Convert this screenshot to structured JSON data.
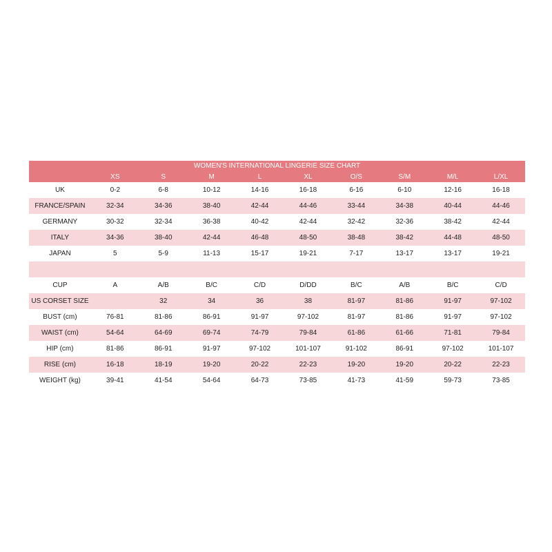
{
  "title": "WOMEN'S INTERNATIONAL LINGERIE SIZE CHART",
  "colors": {
    "header": "#E57B80",
    "stripe": "#F8D7DA"
  },
  "sizes": [
    "XS",
    "S",
    "M",
    "L",
    "XL",
    "O/S",
    "S/M",
    "M/L",
    "L/XL"
  ],
  "rows": [
    {
      "label": "UK",
      "values": [
        "0-2",
        "6-8",
        "10-12",
        "14-16",
        "16-18",
        "6-16",
        "6-10",
        "12-16",
        "16-18"
      ]
    },
    {
      "label": "FRANCE/SPAIN",
      "values": [
        "32-34",
        "34-36",
        "38-40",
        "42-44",
        "44-46",
        "33-44",
        "34-38",
        "40-44",
        "44-46"
      ]
    },
    {
      "label": "GERMANY",
      "values": [
        "30-32",
        "32-34",
        "36-38",
        "40-42",
        "42-44",
        "32-42",
        "32-36",
        "38-42",
        "42-44"
      ]
    },
    {
      "label": "ITALY",
      "values": [
        "34-36",
        "38-40",
        "42-44",
        "46-48",
        "48-50",
        "38-48",
        "38-42",
        "44-48",
        "48-50"
      ]
    },
    {
      "label": "JAPAN",
      "values": [
        "5",
        "5-9",
        "11-13",
        "15-17",
        "19-21",
        "7-17",
        "13-17",
        "13-17",
        "19-21"
      ]
    },
    {
      "label": "",
      "values": [
        "",
        "",
        "",
        "",
        "",
        "",
        "",
        "",
        ""
      ]
    },
    {
      "label": "CUP",
      "values": [
        "A",
        "A/B",
        "B/C",
        "C/D",
        "D/DD",
        "B/C",
        "A/B",
        "B/C",
        "C/D"
      ]
    },
    {
      "label": "US CORSET SIZE",
      "values": [
        "",
        "32",
        "34",
        "36",
        "38",
        "81-97",
        "81-86",
        "91-97",
        "97-102"
      ]
    },
    {
      "label": "BUST (cm)",
      "values": [
        "76-81",
        "81-86",
        "86-91",
        "91-97",
        "97-102",
        "81-97",
        "81-86",
        "91-97",
        "97-102"
      ]
    },
    {
      "label": "WAIST (cm)",
      "values": [
        "54-64",
        "64-69",
        "69-74",
        "74-79",
        "79-84",
        "61-86",
        "61-66",
        "71-81",
        "79-84"
      ]
    },
    {
      "label": "HIP (cm)",
      "values": [
        "81-86",
        "86-91",
        "91-97",
        "97-102",
        "101-107",
        "91-102",
        "86-91",
        "97-102",
        "101-107"
      ]
    },
    {
      "label": "RISE (cm)",
      "values": [
        "16-18",
        "18-19",
        "19-20",
        "20-22",
        "22-23",
        "19-20",
        "19-20",
        "20-22",
        "22-23"
      ]
    },
    {
      "label": "WEIGHT (kg)",
      "values": [
        "39-41",
        "41-54",
        "54-64",
        "64-73",
        "73-85",
        "41-73",
        "41-59",
        "59-73",
        "73-85"
      ]
    }
  ]
}
